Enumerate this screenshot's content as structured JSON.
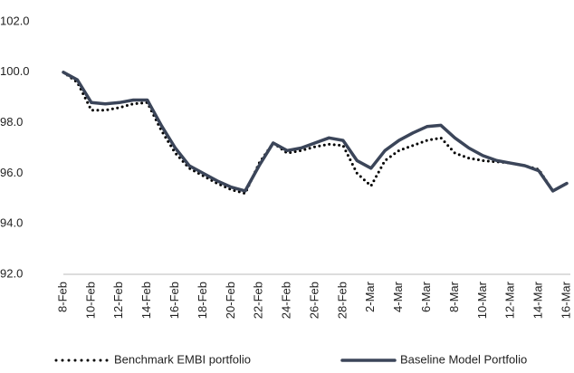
{
  "chart_data": {
    "type": "line",
    "categories": [
      "8-Feb",
      null,
      "10-Feb",
      null,
      "12-Feb",
      null,
      "14-Feb",
      null,
      "16-Feb",
      null,
      "18-Feb",
      null,
      "20-Feb",
      null,
      "22-Feb",
      null,
      "24-Feb",
      null,
      "26-Feb",
      null,
      "28-Feb",
      null,
      "2-Mar",
      null,
      "4-Mar",
      null,
      "6-Mar",
      null,
      "8-Mar",
      null,
      "10-Mar",
      null,
      "12-Mar",
      null,
      "14-Mar",
      null,
      "16-Mar"
    ],
    "series": [
      {
        "name": "Benchmark EMBI portfolio",
        "color": "#000000",
        "dash": "dotted",
        "values": [
          100.0,
          99.6,
          98.5,
          98.5,
          98.6,
          98.75,
          98.8,
          97.7,
          96.8,
          96.2,
          95.9,
          95.6,
          95.35,
          95.2,
          96.4,
          97.2,
          96.8,
          96.9,
          97.05,
          97.15,
          97.1,
          96.0,
          95.5,
          96.5,
          96.9,
          97.1,
          97.3,
          97.4,
          96.8,
          96.6,
          96.5,
          96.45,
          96.4,
          96.3,
          96.15,
          95.3,
          95.6
        ]
      },
      {
        "name": "Baseline Model Portfolio",
        "color": "#3b4559",
        "dash": "solid",
        "values": [
          100.0,
          99.7,
          98.8,
          98.75,
          98.8,
          98.9,
          98.9,
          97.9,
          97.0,
          96.3,
          96.0,
          95.7,
          95.45,
          95.3,
          96.3,
          97.2,
          96.9,
          97.0,
          97.2,
          97.4,
          97.3,
          96.5,
          96.2,
          96.9,
          97.3,
          97.6,
          97.85,
          97.9,
          97.4,
          97.0,
          96.7,
          96.5,
          96.4,
          96.3,
          96.1,
          95.3,
          95.6
        ]
      }
    ],
    "ylim": [
      92,
      102
    ],
    "yticks": [
      {
        "value": 92,
        "label": "92.0"
      },
      {
        "value": 94,
        "label": "94.0"
      },
      {
        "value": 96,
        "label": "96.0"
      },
      {
        "value": 98,
        "label": "98.0"
      },
      {
        "value": 100,
        "label": "100.0"
      },
      {
        "value": 102,
        "label": "102.0"
      }
    ],
    "grid": false,
    "legend": "bottom"
  }
}
